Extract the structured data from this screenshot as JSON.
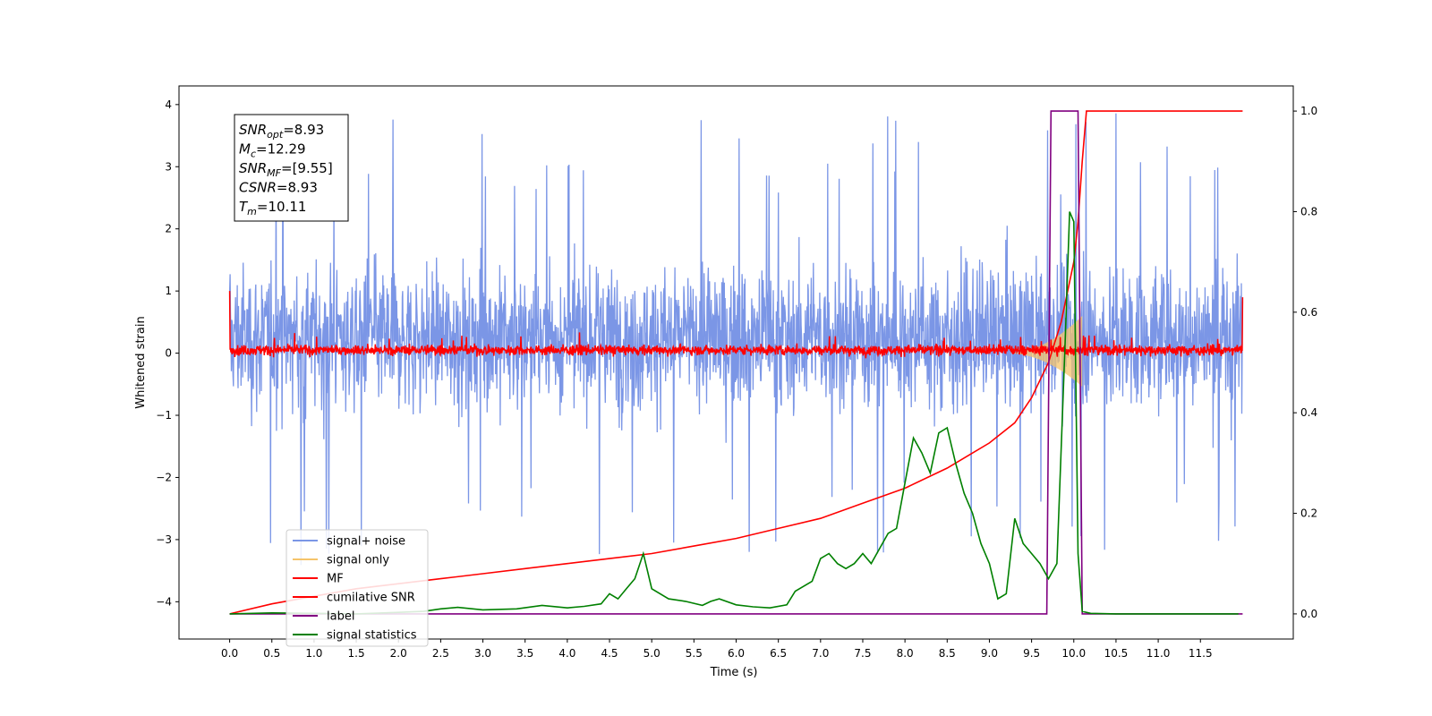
{
  "chart_data": {
    "type": "line",
    "title": "",
    "xlabel": "Time (s)",
    "ylabel": "Whitened strain",
    "ylabel_right": "",
    "xlim": [
      -0.6,
      12.6
    ],
    "ylim": [
      -4.6,
      4.3
    ],
    "ylim_right": [
      -0.05,
      1.05
    ],
    "xticks": [
      0.0,
      0.5,
      1.0,
      1.5,
      2.0,
      2.5,
      3.0,
      3.5,
      4.0,
      4.5,
      5.0,
      5.5,
      6.0,
      6.5,
      7.0,
      7.5,
      8.0,
      8.5,
      9.0,
      9.5,
      10.0,
      10.5,
      11.0,
      11.5
    ],
    "xtick_labels": [
      "0.0",
      "0.5",
      "1.0",
      "1.5",
      "2.0",
      "2.5",
      "3.0",
      "3.5",
      "4.0",
      "4.5",
      "5.0",
      "5.5",
      "6.0",
      "6.5",
      "7.0",
      "7.5",
      "8.0",
      "8.5",
      "9.0",
      "9.5",
      "10.0",
      "10.5",
      "11.0",
      "11.5"
    ],
    "yticks": [
      -4,
      -3,
      -2,
      -1,
      0,
      1,
      2,
      3,
      4
    ],
    "ytick_labels": [
      "−4",
      "−3",
      "−2",
      "−1",
      "0",
      "1",
      "2",
      "3",
      "4"
    ],
    "yticks_right": [
      0.0,
      0.2,
      0.4,
      0.6,
      0.8,
      1.0
    ],
    "ytick_labels_right": [
      "0.0",
      "0.2",
      "0.4",
      "0.6",
      "0.8",
      "1.0"
    ],
    "grid": false,
    "legend_position": "lower-left",
    "annotation_lines": [
      {
        "sym": "SNR",
        "sub": "opt",
        "value": "=8.93"
      },
      {
        "sym": "M",
        "sub": "c",
        "value": "=12.29"
      },
      {
        "sym": "SNR",
        "sub": "MF",
        "value": "=[9.55]"
      },
      {
        "sym": "CSNR",
        "sub": "",
        "value": "=8.93"
      },
      {
        "sym": "T",
        "sub": "m",
        "value": "=10.11"
      }
    ],
    "series": [
      {
        "name": "signal+ noise",
        "color": "#7b96e6",
        "axis": "left",
        "style": "noise",
        "description_values": {
          "t_start": 0.0,
          "t_end": 12.0,
          "typical_range": [
            -2.0,
            2.5
          ],
          "max": 3.88,
          "min": -4.1
        }
      },
      {
        "name": "signal only",
        "color": "#f5c46b",
        "axis": "left",
        "style": "chirp",
        "description_values": {
          "t_start": 9.2,
          "t_peak": 10.1,
          "peak_amplitude": 0.6
        }
      },
      {
        "name": "MF",
        "color": "#ff0000",
        "axis": "left",
        "style": "noise",
        "description_values": {
          "t_start": 0.0,
          "t_end": 12.0,
          "typical_range": [
            -0.15,
            0.25
          ],
          "start_value": 1.0,
          "end_value": 0.9
        }
      },
      {
        "name": "cumilative SNR",
        "color": "#ff0000",
        "axis": "right",
        "x": [
          0.0,
          0.5,
          1.0,
          1.5,
          2.0,
          2.5,
          3.0,
          3.5,
          4.0,
          4.5,
          5.0,
          5.5,
          6.0,
          6.5,
          7.0,
          7.5,
          8.0,
          8.5,
          9.0,
          9.3,
          9.5,
          9.7,
          9.85,
          10.0,
          10.05,
          10.1,
          10.15,
          11.0,
          12.0
        ],
        "y": [
          0.0,
          0.02,
          0.035,
          0.05,
          0.06,
          0.07,
          0.08,
          0.09,
          0.1,
          0.11,
          0.12,
          0.135,
          0.15,
          0.17,
          0.19,
          0.22,
          0.25,
          0.29,
          0.34,
          0.38,
          0.43,
          0.5,
          0.58,
          0.7,
          0.78,
          0.9,
          1.0,
          1.0,
          1.0
        ]
      },
      {
        "name": "label",
        "color": "#800080",
        "axis": "right",
        "x": [
          0.0,
          9.68,
          9.73,
          10.05,
          10.1,
          12.0
        ],
        "y": [
          0.0,
          0.0,
          1.0,
          1.0,
          0.0,
          0.0
        ]
      },
      {
        "name": "signal statistics",
        "color": "#008000",
        "axis": "right",
        "x": [
          0.0,
          0.5,
          1.0,
          1.5,
          2.0,
          2.3,
          2.5,
          2.7,
          3.0,
          3.4,
          3.7,
          4.0,
          4.2,
          4.4,
          4.5,
          4.6,
          4.7,
          4.8,
          4.9,
          5.0,
          5.2,
          5.4,
          5.6,
          5.7,
          5.8,
          6.0,
          6.2,
          6.4,
          6.6,
          6.7,
          6.9,
          7.0,
          7.1,
          7.2,
          7.3,
          7.4,
          7.5,
          7.6,
          7.7,
          7.8,
          7.9,
          8.0,
          8.1,
          8.2,
          8.3,
          8.4,
          8.5,
          8.6,
          8.7,
          8.8,
          8.9,
          9.0,
          9.1,
          9.2,
          9.3,
          9.4,
          9.5,
          9.6,
          9.7,
          9.8,
          9.9,
          9.95,
          10.0,
          10.05,
          10.1,
          10.2,
          10.5,
          11.0,
          11.5,
          11.95
        ],
        "y": [
          0.0,
          0.002,
          0.001,
          0.0,
          0.003,
          0.005,
          0.01,
          0.013,
          0.008,
          0.01,
          0.017,
          0.012,
          0.015,
          0.02,
          0.04,
          0.03,
          0.05,
          0.07,
          0.12,
          0.05,
          0.03,
          0.025,
          0.017,
          0.025,
          0.03,
          0.018,
          0.014,
          0.012,
          0.018,
          0.045,
          0.065,
          0.11,
          0.12,
          0.1,
          0.09,
          0.1,
          0.12,
          0.1,
          0.13,
          0.16,
          0.17,
          0.26,
          0.35,
          0.32,
          0.28,
          0.36,
          0.37,
          0.3,
          0.24,
          0.2,
          0.14,
          0.1,
          0.03,
          0.04,
          0.19,
          0.14,
          0.12,
          0.1,
          0.07,
          0.1,
          0.55,
          0.8,
          0.78,
          0.12,
          0.005,
          0.001,
          0.0,
          0.0,
          0.0,
          0.0
        ]
      }
    ]
  }
}
